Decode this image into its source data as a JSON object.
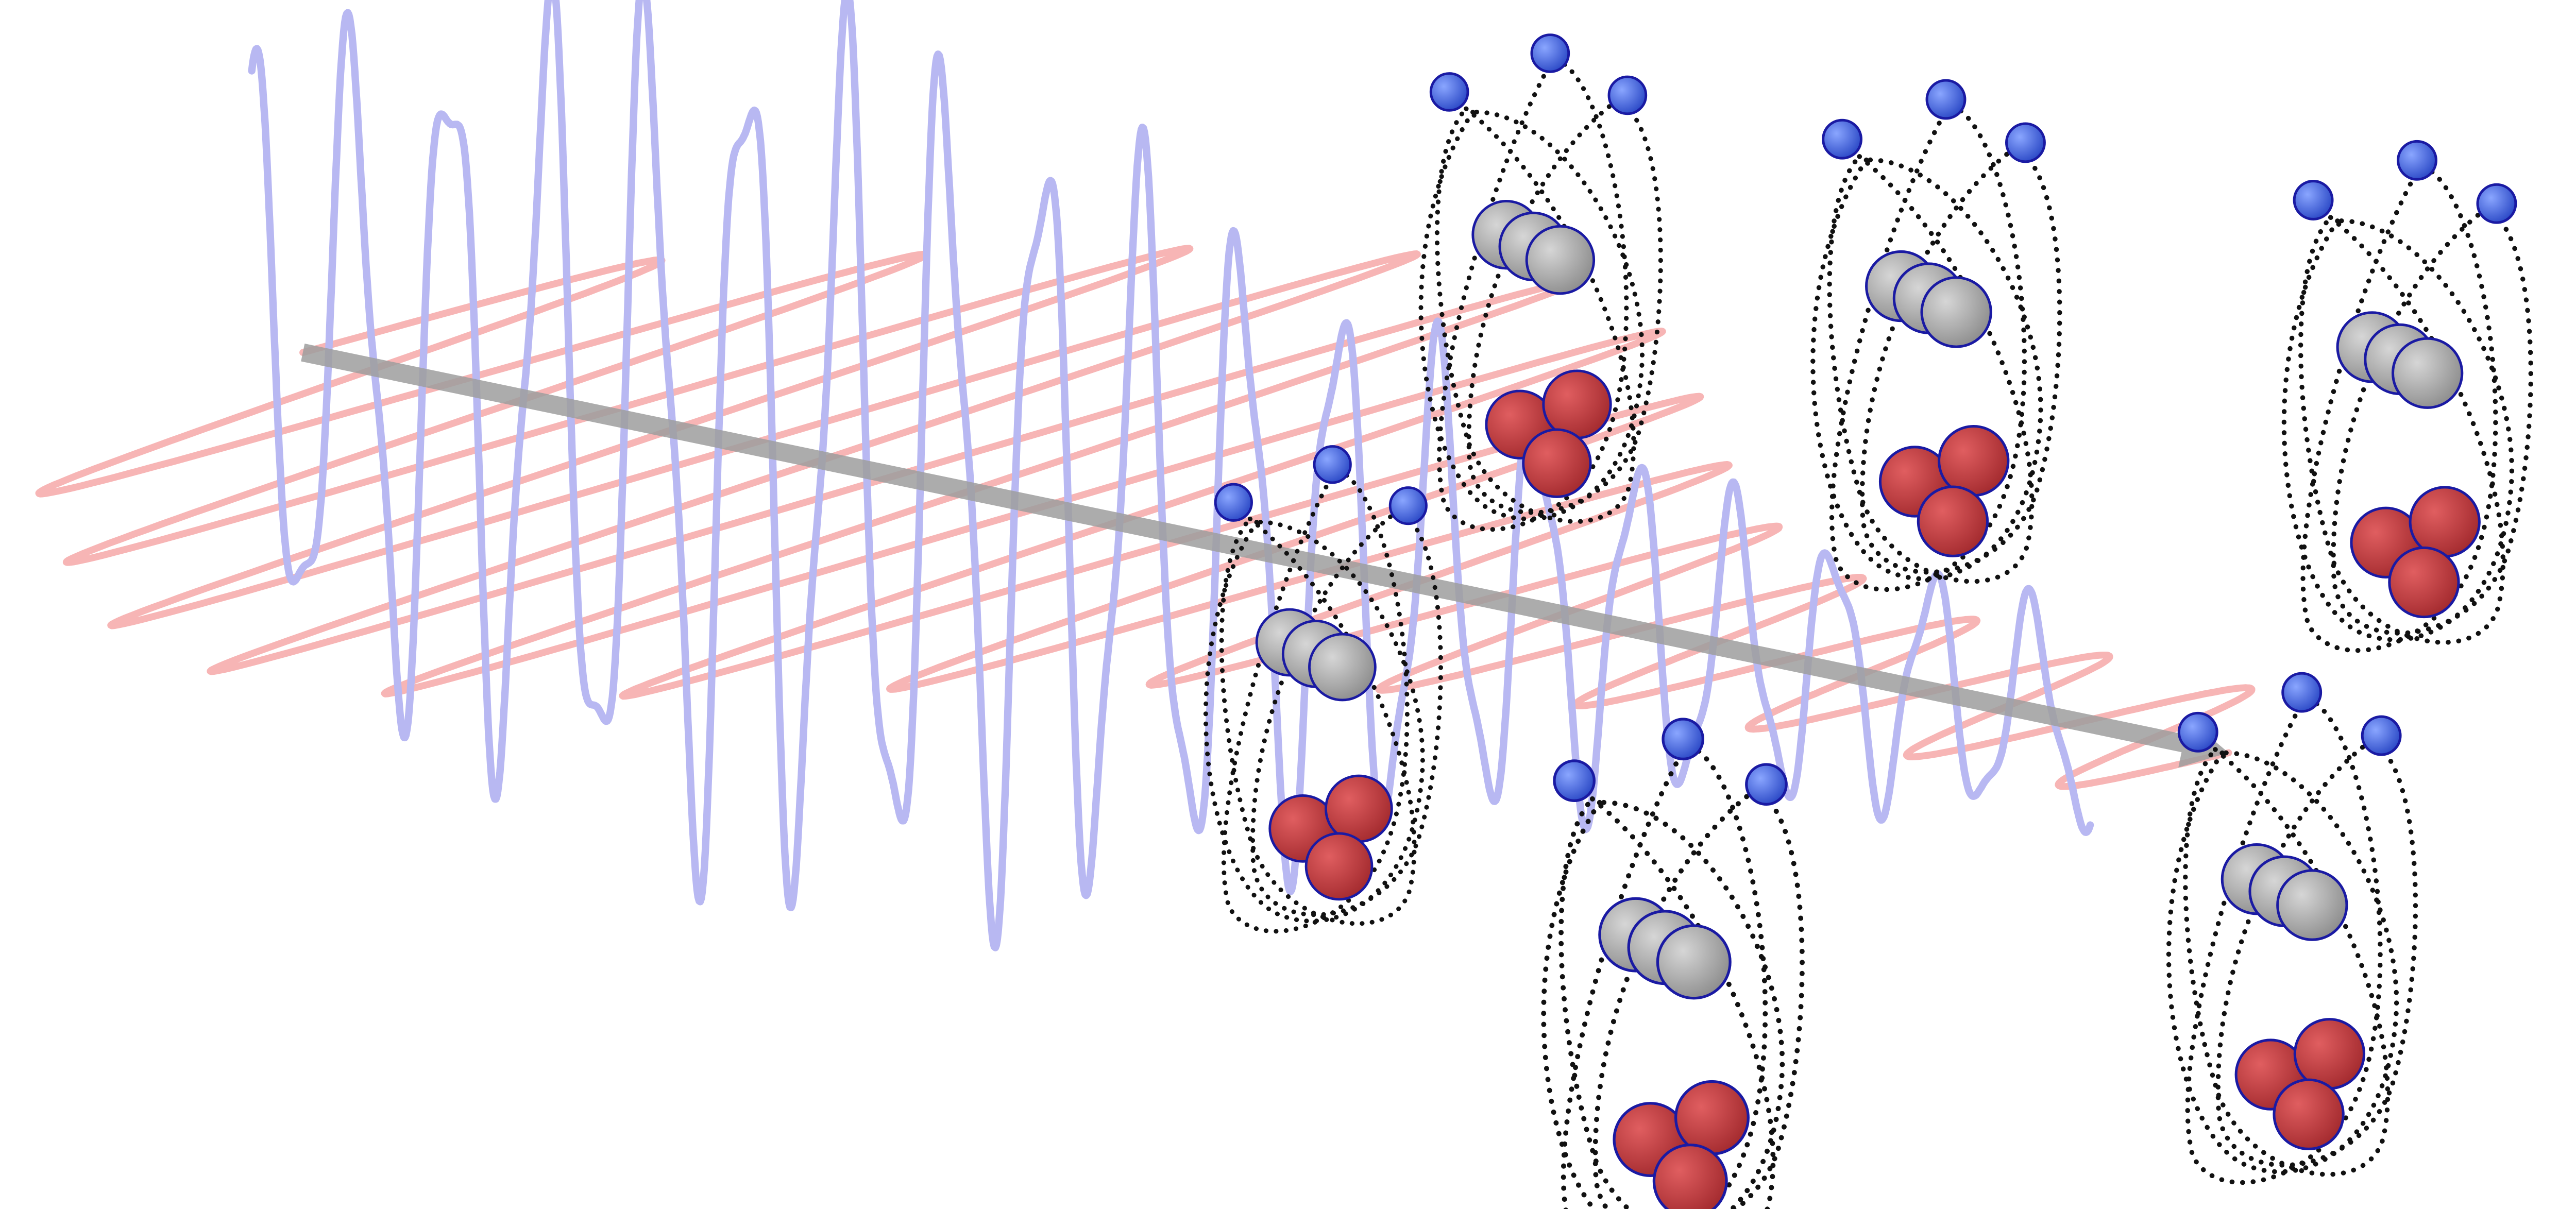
{
  "figure": {
    "background": "#ffffff",
    "colors": {
      "wave_horizontal": "#f7b5b5",
      "wave_vertical": "#b8b8f2",
      "propagation_arrow": "#9d9d9d",
      "proton_base": "#a42b2f",
      "proton_highlight": "#e05e60",
      "neutron_base": "#8e8e8e",
      "neutron_highlight": "#d6d6d6",
      "electron_base": "#2b49c6",
      "electron_highlight": "#8aa6ff",
      "particle_outline": "#1a1aa3",
      "orbit": "#111111"
    },
    "atom_count": 6,
    "atom_composition": {
      "protons": 3,
      "neutrons": 3,
      "electrons": 3
    },
    "atoms": [
      {
        "name": "atom-1"
      },
      {
        "name": "atom-2"
      },
      {
        "name": "atom-3"
      },
      {
        "name": "atom-4"
      },
      {
        "name": "atom-5"
      },
      {
        "name": "atom-6"
      }
    ]
  }
}
